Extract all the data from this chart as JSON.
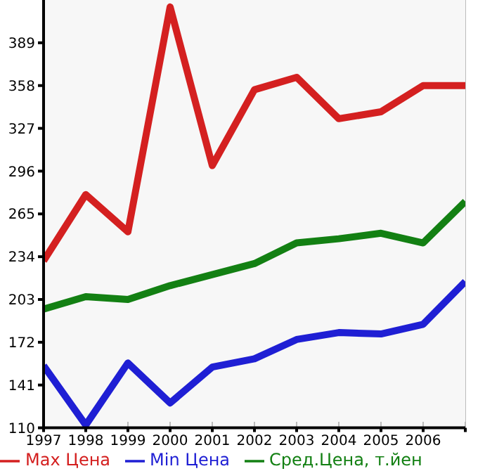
{
  "chart_data": {
    "type": "line",
    "x": [
      1997,
      1998,
      1999,
      2000,
      2001,
      2002,
      2003,
      2004,
      2005,
      2006,
      2007
    ],
    "series": [
      {
        "name": "Max Цена",
        "color": "#d42020",
        "values": [
          231,
          279,
          252,
          415,
          300,
          355,
          364,
          334,
          339,
          358,
          358
        ]
      },
      {
        "name": "Min Цена",
        "color": "#1f1fd4",
        "values": [
          155,
          112,
          157,
          128,
          154,
          160,
          174,
          179,
          178,
          185,
          216
        ]
      },
      {
        "name": "Сред.Цена, т.йен",
        "color": "#138013",
        "values": [
          196,
          205,
          203,
          213,
          221,
          229,
          244,
          247,
          251,
          244,
          274
        ]
      }
    ],
    "xlim": [
      1997,
      2007
    ],
    "xticks": [
      1997,
      1998,
      1999,
      2000,
      2001,
      2002,
      2003,
      2004,
      2005,
      2006,
      {
        "value": 2007,
        "label": null
      }
    ],
    "ylim": [
      110,
      420
    ],
    "yticks": [
      110,
      141,
      172,
      203,
      234,
      265,
      296,
      327,
      358,
      389
    ],
    "grid": true,
    "legend": "bottom",
    "marker": "none",
    "line_style": "solid"
  }
}
